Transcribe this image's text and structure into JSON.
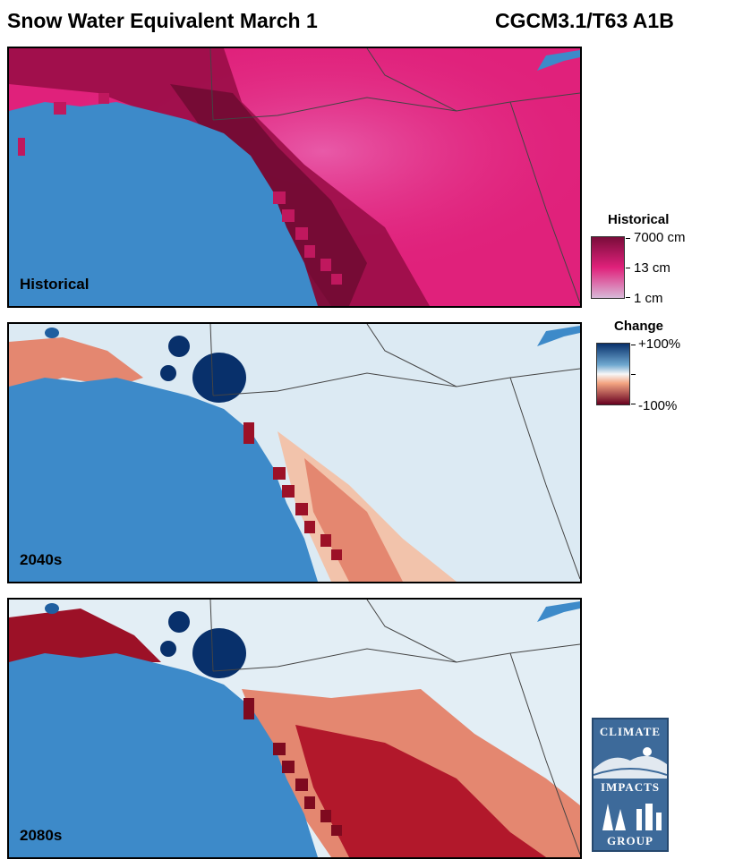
{
  "header": {
    "title": "Snow Water Equivalent March 1",
    "model": "CGCM3.1/T63 A1B"
  },
  "panels": [
    {
      "label": "Historical",
      "scheme": "historical"
    },
    {
      "label": "2040s",
      "scheme": "change_mid"
    },
    {
      "label": "2080s",
      "scheme": "change_late"
    }
  ],
  "legend_historical": {
    "title": "Historical",
    "ticks": [
      "7000 cm",
      "13 cm",
      "1 cm"
    ],
    "colors": [
      "#7a0c3a",
      "#e0217b",
      "#d8b8d8"
    ]
  },
  "legend_change": {
    "title": "Change",
    "ticks": [
      "+100%",
      "-100%"
    ],
    "colors": [
      "#08306b",
      "#f7f7f7",
      "#67001f"
    ]
  },
  "logo": {
    "words": [
      "CLIMATE",
      "IMPACTS",
      "GROUP"
    ],
    "colors": {
      "bg": "#3d6a9a",
      "fg": "#ffffff"
    }
  },
  "colors": {
    "ocean": "#3d8ac9",
    "borders": "#444444"
  }
}
